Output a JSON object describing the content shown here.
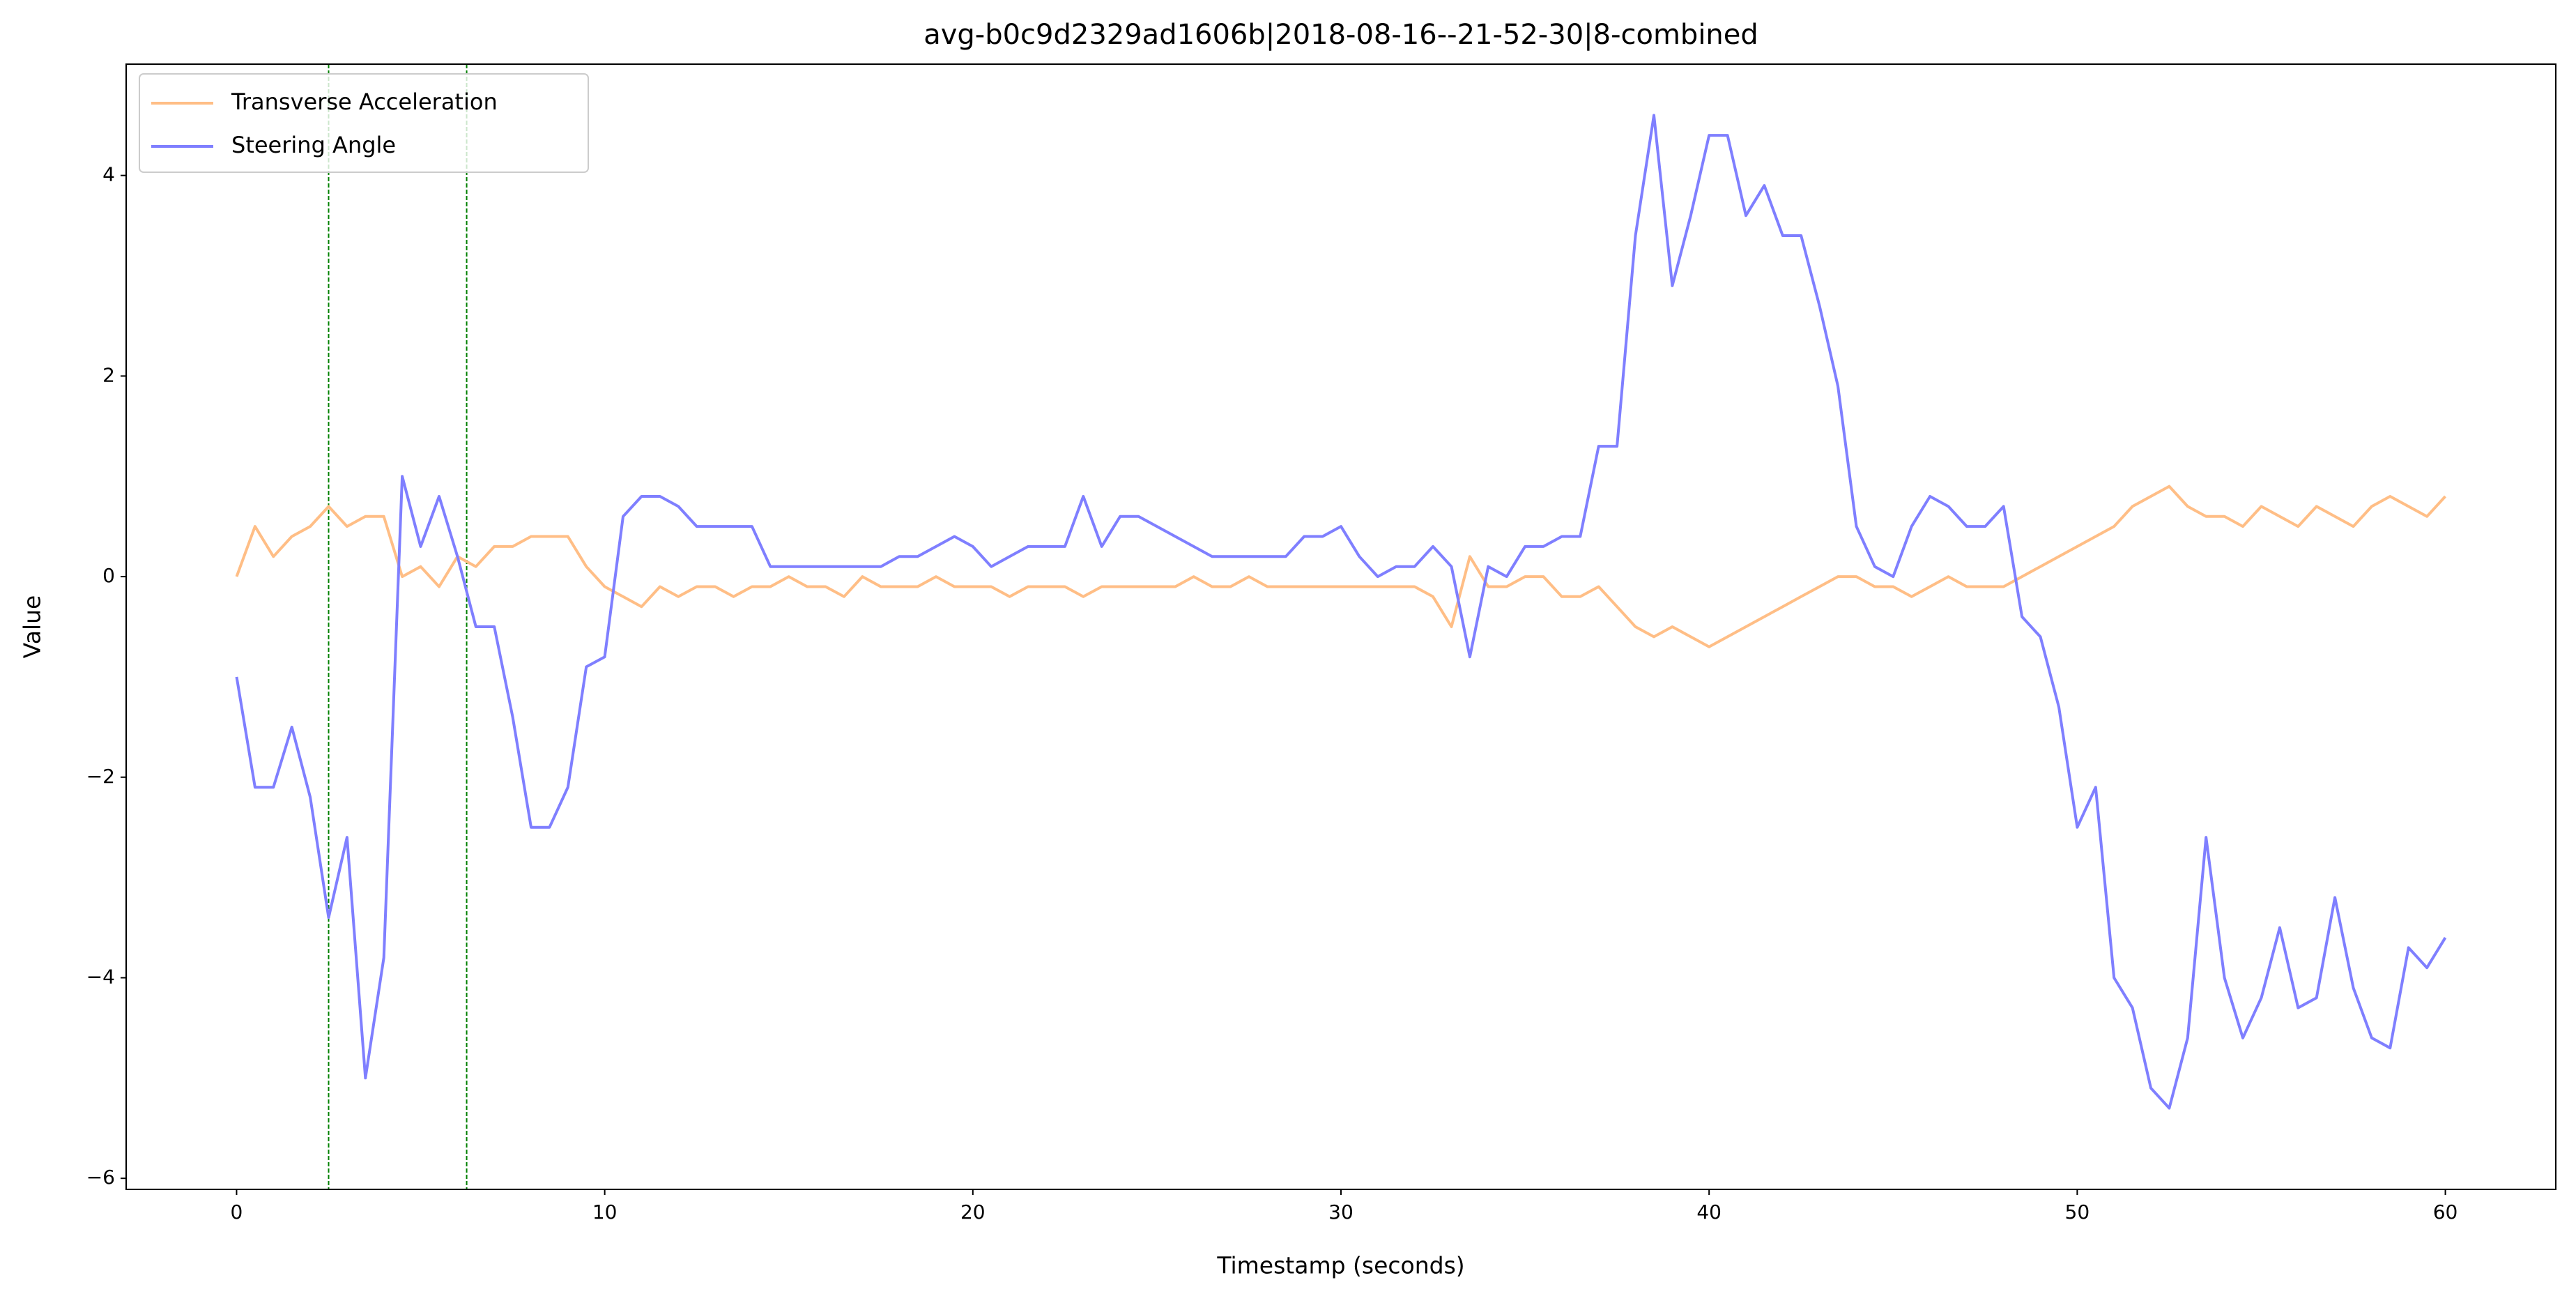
{
  "chart_data": {
    "type": "line",
    "title": "avg-b0c9d2329ad1606b|2018-08-16--21-52-30|8-combined",
    "x_label": "Timestamp (seconds)",
    "y_label": "Value",
    "x": [
      0,
      0.5,
      1,
      1.5,
      2,
      2.5,
      3,
      3.5,
      4,
      4.5,
      5,
      5.5,
      6,
      6.5,
      7,
      7.5,
      8,
      8.5,
      9,
      9.5,
      10,
      10.5,
      11,
      11.5,
      12,
      12.5,
      13,
      13.5,
      14,
      14.5,
      15,
      15.5,
      16,
      16.5,
      17,
      17.5,
      18,
      18.5,
      19,
      19.5,
      20,
      20.5,
      21,
      21.5,
      22,
      22.5,
      23,
      23.5,
      24,
      24.5,
      25,
      25.5,
      26,
      26.5,
      27,
      27.5,
      28,
      28.5,
      29,
      29.5,
      30,
      30.5,
      31,
      31.5,
      32,
      32.5,
      33,
      33.5,
      34,
      34.5,
      35,
      35.5,
      36,
      36.5,
      37,
      37.5,
      38,
      38.5,
      39,
      39.5,
      40,
      40.5,
      41,
      41.5,
      42,
      42.5,
      43,
      43.5,
      44,
      44.5,
      45,
      45.5,
      46,
      46.5,
      47,
      47.5,
      48,
      48.5,
      49,
      49.5,
      50,
      50.5,
      51,
      51.5,
      52,
      52.5,
      53,
      53.5,
      54,
      54.5,
      55,
      55.5,
      56,
      56.5,
      57,
      57.5,
      58,
      58.5,
      59,
      59.5,
      60
    ],
    "series": [
      {
        "name": "Transverse Acceleration",
        "color": "#ffbe86",
        "values": [
          0.0,
          0.5,
          0.2,
          0.4,
          0.5,
          0.7,
          0.5,
          0.6,
          0.6,
          0.0,
          0.1,
          -0.1,
          0.2,
          0.1,
          0.3,
          0.3,
          0.4,
          0.4,
          0.4,
          0.1,
          -0.1,
          -0.2,
          -0.3,
          -0.1,
          -0.2,
          -0.1,
          -0.1,
          -0.2,
          -0.1,
          -0.1,
          0.0,
          -0.1,
          -0.1,
          -0.2,
          0.0,
          -0.1,
          -0.1,
          -0.1,
          0.0,
          -0.1,
          -0.1,
          -0.1,
          -0.2,
          -0.1,
          -0.1,
          -0.1,
          -0.2,
          -0.1,
          -0.1,
          -0.1,
          -0.1,
          -0.1,
          0.0,
          -0.1,
          -0.1,
          0.0,
          -0.1,
          -0.1,
          -0.1,
          -0.1,
          -0.1,
          -0.1,
          -0.1,
          -0.1,
          -0.1,
          -0.2,
          -0.5,
          0.2,
          -0.1,
          -0.1,
          0.0,
          0.0,
          -0.2,
          -0.2,
          -0.1,
          -0.3,
          -0.5,
          -0.6,
          -0.5,
          -0.6,
          -0.7,
          -0.6,
          -0.5,
          -0.4,
          -0.3,
          -0.2,
          -0.1,
          0.0,
          0.0,
          -0.1,
          -0.1,
          -0.2,
          -0.1,
          0.0,
          -0.1,
          -0.1,
          -0.1,
          0.0,
          0.1,
          0.2,
          0.3,
          0.4,
          0.5,
          0.7,
          0.8,
          0.9,
          0.7,
          0.6,
          0.6,
          0.5,
          0.7,
          0.6,
          0.5,
          0.7,
          0.6,
          0.5,
          0.7,
          0.8,
          0.7,
          0.6,
          0.8
        ]
      },
      {
        "name": "Steering Angle",
        "color": "#7f7fff",
        "values": [
          -1.0,
          -2.1,
          -2.1,
          -1.5,
          -2.2,
          -3.4,
          -2.6,
          -5.0,
          -3.8,
          1.0,
          0.3,
          0.8,
          0.2,
          -0.5,
          -0.5,
          -1.4,
          -2.5,
          -2.5,
          -2.1,
          -0.9,
          -0.8,
          0.6,
          0.8,
          0.8,
          0.7,
          0.5,
          0.5,
          0.5,
          0.5,
          0.1,
          0.1,
          0.1,
          0.1,
          0.1,
          0.1,
          0.1,
          0.2,
          0.2,
          0.3,
          0.4,
          0.3,
          0.1,
          0.2,
          0.3,
          0.3,
          0.3,
          0.8,
          0.3,
          0.6,
          0.6,
          0.5,
          0.4,
          0.3,
          0.2,
          0.2,
          0.2,
          0.2,
          0.2,
          0.4,
          0.4,
          0.5,
          0.2,
          0.0,
          0.1,
          0.1,
          0.3,
          0.1,
          -0.8,
          0.1,
          0.0,
          0.3,
          0.3,
          0.4,
          0.4,
          1.3,
          1.3,
          3.4,
          4.6,
          2.9,
          3.6,
          4.4,
          4.4,
          3.6,
          3.9,
          3.4,
          3.4,
          2.7,
          1.9,
          0.5,
          0.1,
          0.0,
          0.5,
          0.8,
          0.7,
          0.5,
          0.5,
          0.7,
          -0.4,
          -0.6,
          -1.3,
          -2.5,
          -2.1,
          -4.0,
          -4.3,
          -5.1,
          -5.3,
          -4.6,
          -2.6,
          -4.0,
          -4.6,
          -4.2,
          -3.5,
          -4.3,
          -4.2,
          -3.2,
          -4.1,
          -4.6,
          -4.7,
          -3.7,
          -3.9,
          -3.6
        ]
      }
    ],
    "vlines": [
      2.5,
      6.25
    ],
    "vline_color": "#008000",
    "xlim": [
      -3,
      63
    ],
    "xticks": [
      0,
      10,
      20,
      30,
      40,
      50,
      60
    ],
    "ylim": [
      -6.11,
      5.11
    ],
    "yticks": [
      {
        "value": -6,
        "label": "−6"
      },
      {
        "value": -4,
        "label": "−4"
      },
      {
        "value": -2,
        "label": "−2"
      },
      0,
      2,
      4
    ],
    "grid": false,
    "legend": "upper left"
  }
}
